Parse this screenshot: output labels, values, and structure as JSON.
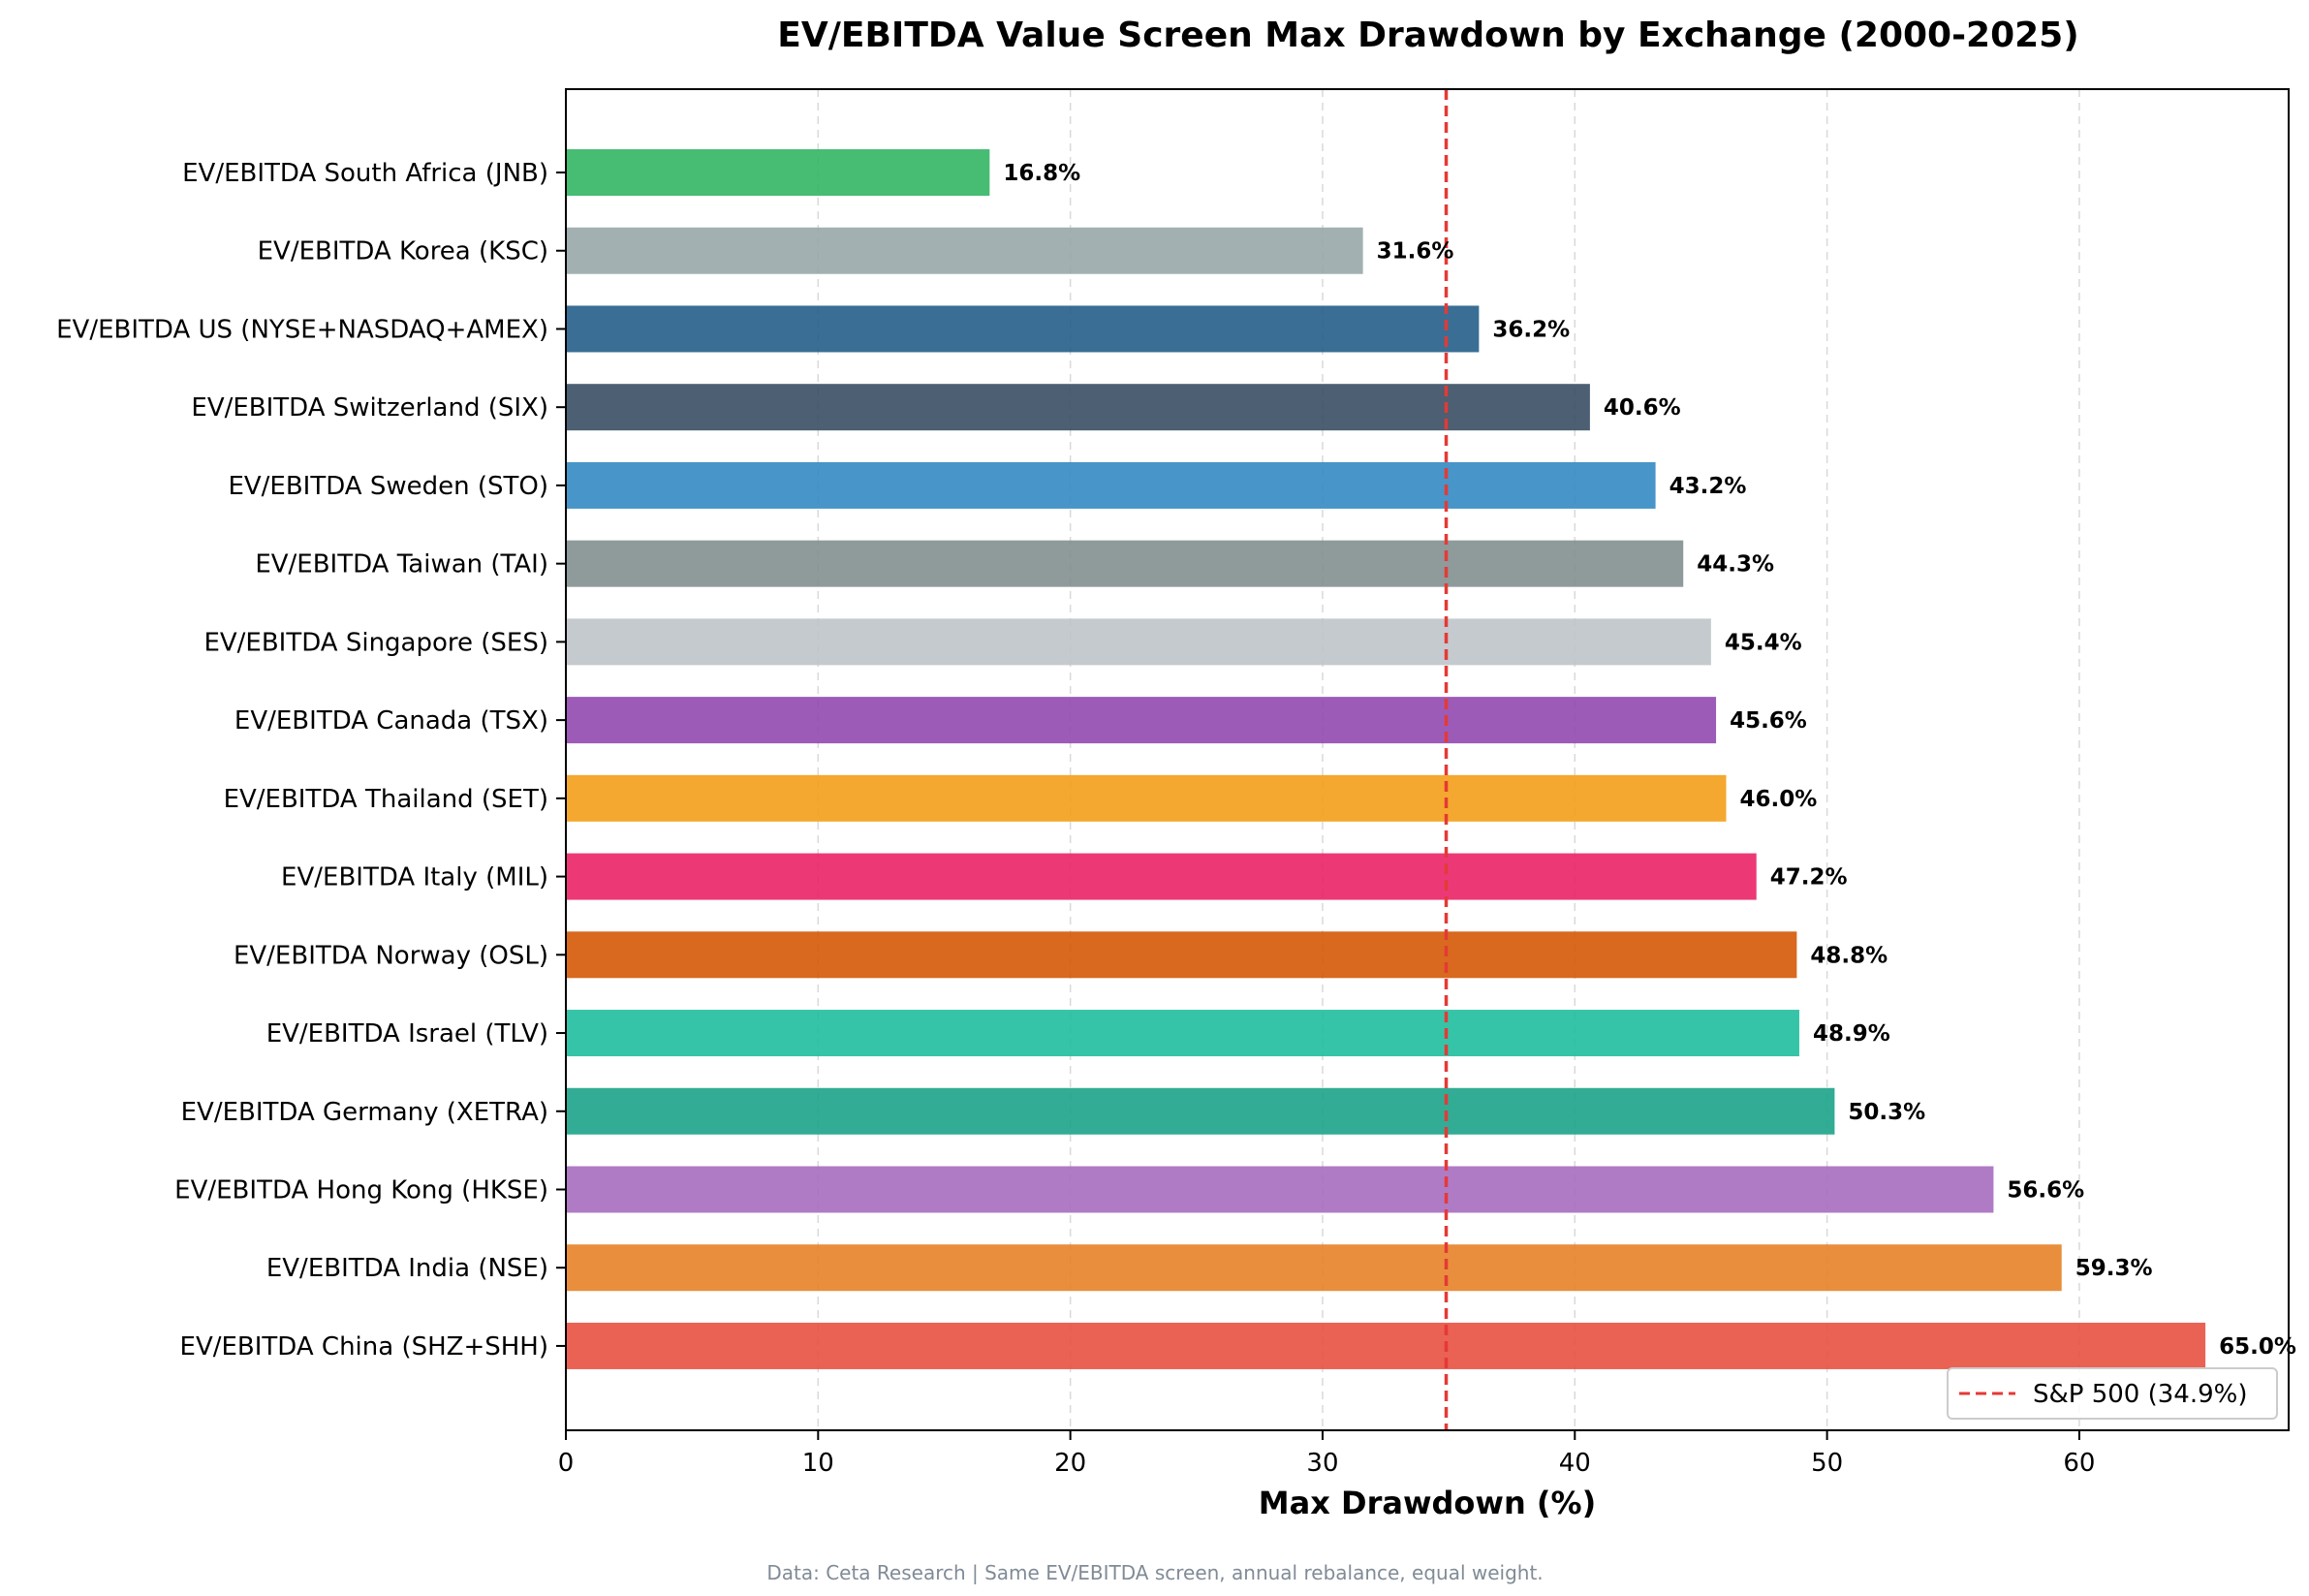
{
  "chart_data": {
    "type": "bar",
    "orientation": "horizontal",
    "title": "EV/EBITDA Value Screen Max Drawdown by Exchange (2000-2025)",
    "xlabel": "Max Drawdown (%)",
    "ylabel": "",
    "xlim": [
      0,
      68.3
    ],
    "xticks": [
      0,
      10,
      20,
      30,
      40,
      50,
      60
    ],
    "grid": "x-dashed",
    "categories": [
      "EV/EBITDA South Africa (JNB)",
      "EV/EBITDA Korea (KSC)",
      "EV/EBITDA US (NYSE+NASDAQ+AMEX)",
      "EV/EBITDA Switzerland (SIX)",
      "EV/EBITDA Sweden (STO)",
      "EV/EBITDA Taiwan (TAI)",
      "EV/EBITDA Singapore (SES)",
      "EV/EBITDA Canada (TSX)",
      "EV/EBITDA Thailand (SET)",
      "EV/EBITDA Italy (MIL)",
      "EV/EBITDA Norway (OSL)",
      "EV/EBITDA Israel (TLV)",
      "EV/EBITDA Germany (XETRA)",
      "EV/EBITDA Hong Kong (HKSE)",
      "EV/EBITDA India (NSE)",
      "EV/EBITDA China (SHZ+SHH)"
    ],
    "values": [
      16.8,
      31.6,
      36.2,
      40.6,
      43.2,
      44.3,
      45.4,
      45.6,
      46.0,
      47.2,
      48.8,
      48.9,
      50.3,
      56.6,
      59.3,
      65.0
    ],
    "value_labels": [
      "16.8%",
      "31.6%",
      "36.2%",
      "40.6%",
      "43.2%",
      "44.3%",
      "45.4%",
      "45.6%",
      "46.0%",
      "47.2%",
      "48.8%",
      "48.9%",
      "50.3%",
      "56.6%",
      "59.3%",
      "65.0%"
    ],
    "colors": [
      "#2eb360",
      "#95a5a6",
      "#1f5a85",
      "#34495e",
      "#2e86c1",
      "#7f8c8d",
      "#bdc3c7",
      "#8e44ad",
      "#f39c12",
      "#e91e63",
      "#d35400",
      "#1abc9c",
      "#16a085",
      "#a569bd",
      "#e67e22",
      "#e74c3c"
    ],
    "reference_line": {
      "value": 34.9,
      "label": "S&P 500 (34.9%)",
      "color": "#e53935",
      "style": "dashed"
    },
    "legend_position": "bottom-right",
    "footnote": "Data: Ceta Research | Same EV/EBITDA screen, annual rebalance, equal weight."
  }
}
